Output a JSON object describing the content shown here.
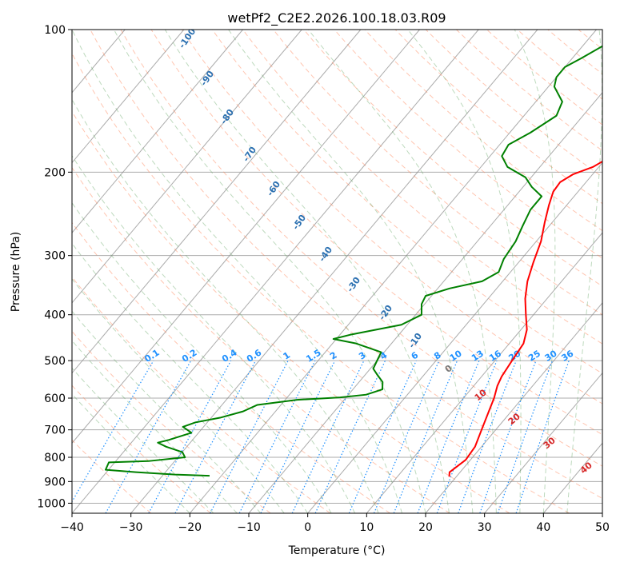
{
  "chart_data": {
    "type": "line",
    "title": "wetPf2_C2E2.2026.100.18.03.R09",
    "xlabel": "Temperature (°C)",
    "ylabel": "Pressure (hPa)",
    "xlim": [
      -40,
      50
    ],
    "ylim": [
      1050,
      100
    ],
    "x_ticks": [
      "−40",
      "−30",
      "−20",
      "−10",
      "0",
      "10",
      "20",
      "30",
      "40",
      "50"
    ],
    "x_tick_values": [
      -40,
      -30,
      -20,
      -10,
      0,
      10,
      20,
      30,
      40,
      50
    ],
    "y_ticks": [
      "100",
      "200",
      "300",
      "400",
      "500",
      "600",
      "700",
      "800",
      "900",
      "1000"
    ],
    "y_tick_values": [
      100,
      200,
      300,
      400,
      500,
      600,
      700,
      800,
      900,
      1000
    ],
    "series": [
      {
        "name": "Temperature",
        "color": "#ff0000",
        "points": [
          [
            879,
            18.8
          ],
          [
            860,
            18.2
          ],
          [
            840,
            18.6
          ],
          [
            810,
            19.2
          ],
          [
            760,
            18.9
          ],
          [
            700,
            17.6
          ],
          [
            640,
            16.2
          ],
          [
            600,
            15.2
          ],
          [
            565,
            14.0
          ],
          [
            540,
            13.4
          ],
          [
            500,
            12.9
          ],
          [
            460,
            12.4
          ],
          [
            430,
            11.0
          ],
          [
            400,
            8.7
          ],
          [
            370,
            6.3
          ],
          [
            340,
            4.2
          ],
          [
            310,
            2.5
          ],
          [
            280,
            0.8
          ],
          [
            255,
            -1.3
          ],
          [
            235,
            -3.0
          ],
          [
            220,
            -4.2
          ],
          [
            210,
            -4.4
          ],
          [
            202,
            -3.3
          ],
          [
            195,
            -1.0
          ],
          [
            180,
            1.5
          ],
          [
            165,
            1.8
          ],
          [
            150,
            1.2
          ],
          [
            135,
            0.3
          ],
          [
            122,
            -0.2
          ],
          [
            112,
            -0.2
          ],
          [
            105,
            -0.5
          ],
          [
            100,
            -1.5
          ]
        ]
      },
      {
        "name": "Dewpoint",
        "color": "#008000",
        "points": [
          [
            875,
            -22.0
          ],
          [
            870,
            -28.0
          ],
          [
            860,
            -35.0
          ],
          [
            850,
            -40.5
          ],
          [
            820,
            -41.0
          ],
          [
            815,
            -34.5
          ],
          [
            800,
            -28.8
          ],
          [
            780,
            -30.0
          ],
          [
            760,
            -33.5
          ],
          [
            745,
            -35.5
          ],
          [
            735,
            -34.0
          ],
          [
            710,
            -31.2
          ],
          [
            690,
            -33.5
          ],
          [
            675,
            -32.0
          ],
          [
            660,
            -28.5
          ],
          [
            640,
            -25.5
          ],
          [
            620,
            -24.0
          ],
          [
            605,
            -18.0
          ],
          [
            598,
            -11.0
          ],
          [
            590,
            -7.0
          ],
          [
            575,
            -5.0
          ],
          [
            555,
            -6.0
          ],
          [
            535,
            -8.0
          ],
          [
            520,
            -9.5
          ],
          [
            500,
            -10.0
          ],
          [
            480,
            -10.5
          ],
          [
            460,
            -16.0
          ],
          [
            450,
            -20.5
          ],
          [
            440,
            -18.0
          ],
          [
            420,
            -11.0
          ],
          [
            400,
            -9.0
          ],
          [
            380,
            -10.5
          ],
          [
            365,
            -11.0
          ],
          [
            352,
            -8.0
          ],
          [
            340,
            -3.5
          ],
          [
            325,
            -2.0
          ],
          [
            305,
            -3.0
          ],
          [
            280,
            -3.5
          ],
          [
            260,
            -4.5
          ],
          [
            240,
            -5.5
          ],
          [
            225,
            -5.5
          ],
          [
            215,
            -8.5
          ],
          [
            205,
            -11.0
          ],
          [
            195,
            -15.5
          ],
          [
            185,
            -18.0
          ],
          [
            175,
            -18.5
          ],
          [
            165,
            -16.5
          ],
          [
            152,
            -14.5
          ],
          [
            142,
            -15.5
          ],
          [
            132,
            -19.0
          ],
          [
            126,
            -20.0
          ],
          [
            120,
            -20.0
          ],
          [
            115,
            -18.5
          ],
          [
            108,
            -16.5
          ],
          [
            102,
            -15.5
          ],
          [
            100,
            -15.0
          ]
        ]
      }
    ],
    "dry_adiabat_labels": [
      "-100",
      "-90",
      "-80",
      "-70",
      "-60",
      "-50",
      "-40",
      "-30",
      "-20",
      "-10"
    ],
    "moist_adiabat_labels": [
      "0",
      "10",
      "20",
      "30",
      "40"
    ],
    "mixing_ratio_labels": [
      "0.1",
      "0.2",
      "0.4",
      "0.6",
      "1",
      "1.5",
      "2",
      "3",
      "4",
      "6",
      "8",
      "10",
      "13",
      "16",
      "20",
      "25",
      "30",
      "36"
    ],
    "mixing_ratio_values": [
      0.1,
      0.2,
      0.4,
      0.6,
      1,
      1.5,
      2,
      3,
      4,
      6,
      8,
      10,
      13,
      16,
      20,
      25,
      30,
      36
    ],
    "colors": {
      "temperature": "#ff0000",
      "dewpoint": "#008000",
      "isotherm": "#888888",
      "dry_adiabat": "#ff7f50",
      "moist_adiabat": "#5aa05a",
      "mixing_ratio": "#1e90ff"
    }
  }
}
